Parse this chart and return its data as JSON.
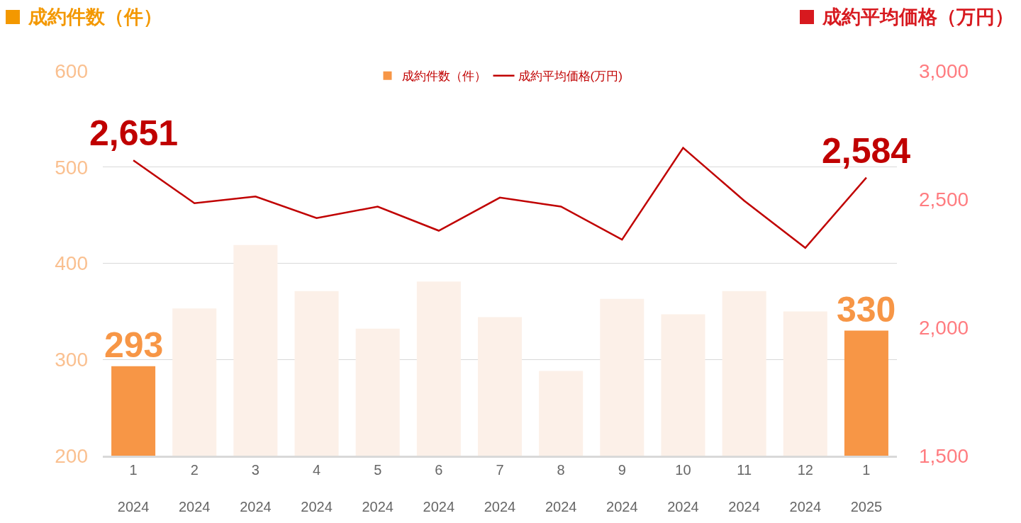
{
  "chart_data": {
    "type": "bar",
    "ylabel": "成約件数（件）",
    "y2label": "成約平均価格（万円）",
    "categories": [
      "1\n2024",
      "2\n2024",
      "3\n2024",
      "4\n2024",
      "5\n2024",
      "6\n2024",
      "7\n2024",
      "8\n2024",
      "9\n2024",
      "10\n2024",
      "11\n2024",
      "12\n2024",
      "1\n2025"
    ],
    "series": [
      {
        "name": "成約件数（件）",
        "colors": [
          "#f79646",
          "#fcf0e8",
          "#fcf0e8",
          "#fcf0e8",
          "#fcf0e8",
          "#fcf0e8",
          "#fcf0e8",
          "#fcf0e8",
          "#fcf0e8",
          "#fcf0e8",
          "#fcf0e8",
          "#fcf0e8",
          "#f79646"
        ],
        "values": [
          293,
          353,
          419,
          371,
          332,
          381,
          344,
          288,
          363,
          347,
          371,
          350,
          330
        ],
        "value_labels": [
          "293",
          null,
          null,
          null,
          null,
          null,
          null,
          null,
          null,
          null,
          null,
          null,
          "330"
        ]
      },
      {
        "name": "成約平均価格(万円)",
        "type": "line",
        "axis": "y2",
        "color": "#c00000",
        "values": [
          2651,
          2484,
          2510,
          2426,
          2471,
          2377,
          2506,
          2471,
          2342,
          2700,
          2494,
          2310,
          2584
        ],
        "value_labels": [
          "2,651",
          null,
          null,
          null,
          null,
          null,
          null,
          null,
          null,
          null,
          null,
          null,
          "2,584"
        ]
      }
    ],
    "ylim": [
      200,
      600
    ],
    "yticks": [
      200,
      300,
      400,
      500,
      600
    ],
    "y2lim": [
      1500,
      3000
    ],
    "y2ticks": [
      {
        "value": 1500,
        "label": "1,500"
      },
      {
        "value": 2000,
        "label": "2,000"
      },
      {
        "value": 2500,
        "label": "2,500"
      },
      {
        "value": 3000,
        "label": "3,000"
      }
    ],
    "grid": "y",
    "legend": "top",
    "marker": "none",
    "line_style": "solid"
  }
}
